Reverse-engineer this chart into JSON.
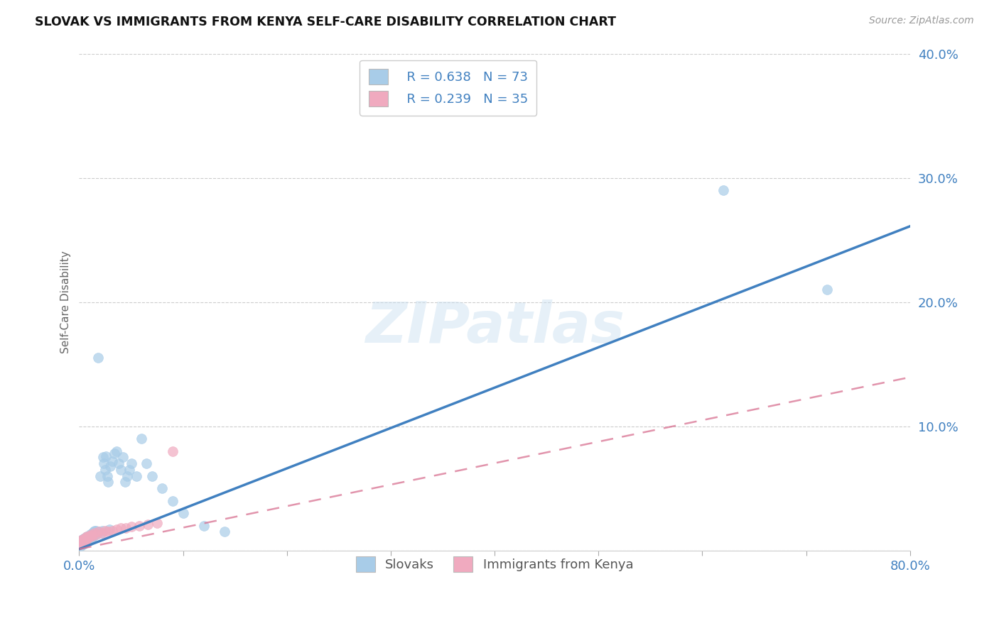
{
  "title": "SLOVAK VS IMMIGRANTS FROM KENYA SELF-CARE DISABILITY CORRELATION CHART",
  "source": "Source: ZipAtlas.com",
  "ylabel": "Self-Care Disability",
  "xlim": [
    0,
    0.8
  ],
  "ylim": [
    0,
    0.4
  ],
  "xticks": [
    0.0,
    0.1,
    0.2,
    0.3,
    0.4,
    0.5,
    0.6,
    0.7,
    0.8
  ],
  "yticks": [
    0.0,
    0.1,
    0.2,
    0.3,
    0.4
  ],
  "grid_color": "#cccccc",
  "blue_color": "#a8cce8",
  "pink_color": "#f0aabf",
  "blue_line_color": "#4080c0",
  "pink_line_color": "#d87090",
  "tick_label_color": "#4080c0",
  "legend_R_blue": "R = 0.638",
  "legend_N_blue": "N = 73",
  "legend_R_pink": "R = 0.239",
  "legend_N_pink": "N = 35",
  "watermark": "ZIPatlas",
  "blue_slope": 0.325,
  "blue_intercept": 0.001,
  "pink_slope": 0.173,
  "pink_intercept": 0.001,
  "slovaks_x": [
    0.001,
    0.001,
    0.002,
    0.002,
    0.002,
    0.003,
    0.003,
    0.003,
    0.004,
    0.004,
    0.004,
    0.005,
    0.005,
    0.005,
    0.006,
    0.006,
    0.006,
    0.007,
    0.007,
    0.007,
    0.008,
    0.008,
    0.009,
    0.009,
    0.01,
    0.01,
    0.011,
    0.011,
    0.012,
    0.012,
    0.013,
    0.013,
    0.014,
    0.014,
    0.015,
    0.015,
    0.016,
    0.016,
    0.017,
    0.018,
    0.019,
    0.02,
    0.021,
    0.022,
    0.023,
    0.024,
    0.025,
    0.026,
    0.027,
    0.028,
    0.029,
    0.03,
    0.032,
    0.034,
    0.036,
    0.038,
    0.04,
    0.042,
    0.044,
    0.046,
    0.048,
    0.05,
    0.055,
    0.06,
    0.065,
    0.07,
    0.08,
    0.09,
    0.1,
    0.12,
    0.14,
    0.62,
    0.72
  ],
  "slovaks_y": [
    0.005,
    0.007,
    0.004,
    0.006,
    0.008,
    0.005,
    0.007,
    0.009,
    0.005,
    0.007,
    0.009,
    0.006,
    0.008,
    0.01,
    0.006,
    0.008,
    0.01,
    0.007,
    0.009,
    0.011,
    0.008,
    0.01,
    0.008,
    0.011,
    0.009,
    0.012,
    0.01,
    0.013,
    0.01,
    0.013,
    0.011,
    0.014,
    0.012,
    0.015,
    0.013,
    0.016,
    0.013,
    0.016,
    0.014,
    0.155,
    0.015,
    0.06,
    0.014,
    0.016,
    0.075,
    0.07,
    0.065,
    0.076,
    0.06,
    0.055,
    0.017,
    0.068,
    0.072,
    0.078,
    0.08,
    0.07,
    0.065,
    0.075,
    0.055,
    0.06,
    0.065,
    0.07,
    0.06,
    0.09,
    0.07,
    0.06,
    0.05,
    0.04,
    0.03,
    0.02,
    0.015,
    0.29,
    0.21
  ],
  "kenya_x": [
    0.001,
    0.001,
    0.002,
    0.002,
    0.003,
    0.003,
    0.004,
    0.004,
    0.005,
    0.005,
    0.006,
    0.006,
    0.007,
    0.007,
    0.008,
    0.009,
    0.01,
    0.011,
    0.012,
    0.013,
    0.015,
    0.017,
    0.019,
    0.022,
    0.025,
    0.028,
    0.032,
    0.036,
    0.04,
    0.045,
    0.05,
    0.058,
    0.066,
    0.075,
    0.09
  ],
  "kenya_y": [
    0.005,
    0.007,
    0.006,
    0.008,
    0.007,
    0.009,
    0.006,
    0.008,
    0.007,
    0.009,
    0.008,
    0.01,
    0.009,
    0.011,
    0.01,
    0.011,
    0.012,
    0.011,
    0.013,
    0.012,
    0.014,
    0.013,
    0.015,
    0.014,
    0.016,
    0.015,
    0.016,
    0.017,
    0.018,
    0.018,
    0.019,
    0.02,
    0.021,
    0.022,
    0.08
  ]
}
